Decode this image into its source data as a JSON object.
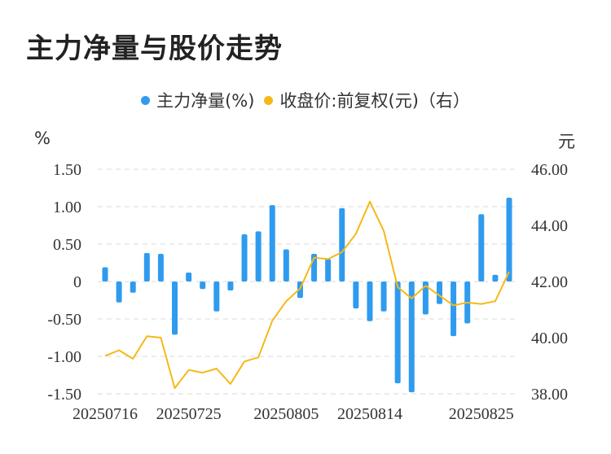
{
  "title": "主力净量与股价走势",
  "legend": {
    "series1": "主力净量(%)",
    "series2": "收盘价:前复权(元)（右）"
  },
  "units": {
    "left": "%",
    "right": "元"
  },
  "colors": {
    "bar": "#2f9bef",
    "line": "#f5b916",
    "grid": "#e6e6e6",
    "text": "#333333"
  },
  "chart_data": {
    "type": "bar",
    "title": "主力净量与股价走势",
    "x_ticks": [
      "20250716",
      "20250725",
      "20250805",
      "20250814",
      "20250825"
    ],
    "y_left": {
      "label": "%",
      "ticks": [
        "1.50",
        "1.00",
        "0.50",
        "0",
        "-0.50",
        "-1.00",
        "-1.50"
      ],
      "range": [
        -1.5,
        1.5
      ]
    },
    "y_right": {
      "label": "元",
      "ticks": [
        "46.00",
        "44.00",
        "42.00",
        "40.00",
        "38.00"
      ],
      "range": [
        38,
        46
      ]
    },
    "grid": true,
    "legend_position": "top-center",
    "series": [
      {
        "name": "主力净量(%)",
        "type": "bar",
        "values": [
          0.19,
          -0.28,
          -0.15,
          0.38,
          0.37,
          -0.71,
          0.12,
          -0.1,
          -0.4,
          -0.12,
          0.63,
          0.67,
          1.02,
          0.43,
          -0.22,
          0.37,
          0.3,
          0.98,
          -0.36,
          -0.53,
          -0.4,
          -1.36,
          -1.48,
          -0.44,
          -0.3,
          -0.73,
          -0.56,
          0.9,
          0.09,
          1.12
        ]
      },
      {
        "name": "收盘价:前复权(元)（右）",
        "type": "line",
        "values": [
          39.35,
          39.55,
          39.25,
          40.05,
          40.0,
          38.2,
          38.85,
          38.75,
          38.9,
          38.35,
          39.15,
          39.3,
          40.6,
          41.3,
          41.75,
          42.85,
          42.8,
          43.05,
          43.7,
          44.85,
          43.8,
          41.8,
          41.4,
          41.85,
          41.5,
          41.15,
          41.25,
          41.2,
          41.3,
          42.35
        ]
      }
    ]
  }
}
